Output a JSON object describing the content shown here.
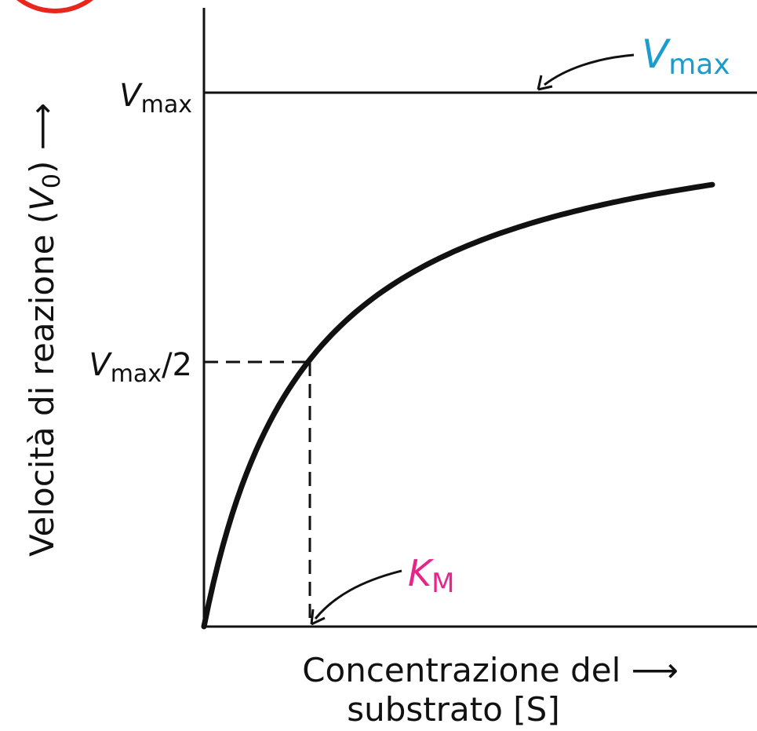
{
  "labels": {
    "vmax": {
      "symbol": "V",
      "subscript": "max"
    },
    "half_vmax": {
      "symbol": "V",
      "subscript": "max",
      "suffix": "/2"
    },
    "vmax_annotation": {
      "symbol": "V",
      "subscript": "max"
    },
    "km": {
      "symbol": "K",
      "subscript": "M"
    },
    "y_axis": {
      "prefix": "Velocità di reazione (",
      "symbol": "V",
      "subscript": "0",
      "suffix": ") ⟶"
    },
    "x_axis": [
      "Concentrazione del ⟶",
      "substrato [S]"
    ]
  }
}
